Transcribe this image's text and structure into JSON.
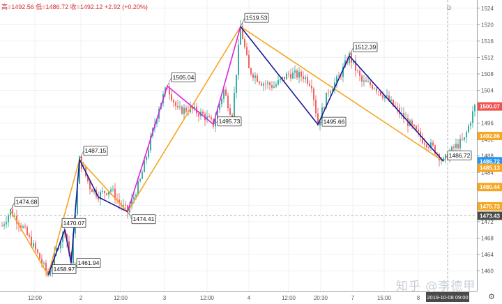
{
  "header": {
    "ohlc_text": "高=1492.56  低=1486.72  收=1492.12  +2.92 (+0.20%)",
    "toolbar_glyph": "⊙"
  },
  "watermark": "知乎 @李德甲",
  "settings_glyph": "⚙",
  "colors": {
    "background": "#ffffff",
    "up_candle": "#26a69a",
    "down_candle": "#ef5350",
    "zigzag_orange": "#f5a623",
    "zigzag_blue": "#1a1a9a",
    "zigzag_magenta": "#e020e0",
    "price_tag_orange": "#f5a623",
    "price_tag_blue": "#2196f3",
    "price_tag_red": "#ef5350",
    "price_tag_dark": "#4a4a4a"
  },
  "chart_data": {
    "type": "candlestick",
    "ylim": [
      1455,
      1526
    ],
    "x_ticks": [
      "12:00",
      "2",
      "12:00",
      "3",
      "12:00",
      "4",
      "12:00",
      "20:30",
      "7",
      "15:00",
      "8",
      "2019-10-08  09:00"
    ],
    "y_ticks": [
      1460,
      1464,
      1468,
      1472,
      1476,
      1480,
      1484,
      1488,
      1492,
      1496,
      1500,
      1504,
      1508,
      1512,
      1516,
      1520,
      1524
    ],
    "highlighted_x": "2019-10-08  09:00",
    "price_tags": [
      {
        "value": 1500.07,
        "color": "#ef5350"
      },
      {
        "value": 1492.86,
        "color": "#f5a623"
      },
      {
        "value": 1486.72,
        "color": "#2196f3"
      },
      {
        "value": 1485.13,
        "color": "#f5a623"
      },
      {
        "value": 1480.44,
        "color": "#f5a623"
      },
      {
        "value": 1475.73,
        "color": "#f5a623"
      },
      {
        "value": 1473.43,
        "color": "#4a4a4a"
      }
    ],
    "crosshair_price": 1473.43,
    "pivot_labels": [
      {
        "text": "1474.68",
        "x": 4,
        "y": 1474.68
      },
      {
        "text": "1470.07",
        "x": 30,
        "y": 1470.07
      },
      {
        "text": "1461.94",
        "x": 33,
        "y": 1461.94
      },
      {
        "text": "1458.97",
        "x": 22,
        "y": 1458.97
      },
      {
        "text": "1487.15",
        "x": 37,
        "y": 1487.15
      },
      {
        "text": "1474.41",
        "x": 60,
        "y": 1474.41
      },
      {
        "text": "1505.04",
        "x": 79,
        "y": 1505.04
      },
      {
        "text": "1495.73",
        "x": 101,
        "y": 1495.73
      },
      {
        "text": "1519.53",
        "x": 114,
        "y": 1519.53
      },
      {
        "text": "1495.66",
        "x": 151,
        "y": 1495.66
      },
      {
        "text": "1512.39",
        "x": 166,
        "y": 1512.39
      },
      {
        "text": "1486.72",
        "x": 211,
        "y": 1486.72
      }
    ],
    "zigzags": [
      {
        "name": "",
        "color": "#f5a623",
        "points": [
          [
            4,
            1474.68
          ],
          [
            22,
            1458.97
          ],
          [
            37,
            1487.15
          ],
          [
            60,
            1474.41
          ],
          [
            114,
            1519.53
          ],
          [
            211,
            1486.72
          ]
        ]
      },
      {
        "name": "",
        "color": "#1a1a9a",
        "points": [
          [
            22,
            1458.97
          ],
          [
            30,
            1470.07
          ],
          [
            33,
            1461.94
          ],
          [
            37,
            1487.15
          ],
          [
            46,
            1478.0
          ],
          [
            60,
            1474.41
          ]
        ]
      },
      {
        "name": "",
        "color": "#e020e0",
        "points": [
          [
            60,
            1474.41
          ],
          [
            79,
            1505.04
          ],
          [
            101,
            1495.73
          ],
          [
            114,
            1519.53
          ]
        ]
      },
      {
        "name": "",
        "color": "#1a1a9a",
        "points": [
          [
            114,
            1519.53
          ],
          [
            151,
            1495.66
          ],
          [
            166,
            1512.39
          ],
          [
            211,
            1486.72
          ]
        ]
      }
    ],
    "series": [
      {
        "name": "",
        "anchors": [
          [
            0,
            1471.0
          ],
          [
            4,
            1474.68
          ],
          [
            10,
            1470.5
          ],
          [
            16,
            1465.0
          ],
          [
            22,
            1458.97
          ],
          [
            27,
            1466.5
          ],
          [
            30,
            1470.07
          ],
          [
            33,
            1461.94
          ],
          [
            37,
            1487.15
          ],
          [
            42,
            1480.5
          ],
          [
            46,
            1478.5
          ],
          [
            52,
            1480.0
          ],
          [
            56,
            1476.5
          ],
          [
            60,
            1474.41
          ],
          [
            66,
            1482.0
          ],
          [
            71,
            1492.0
          ],
          [
            75,
            1500.0
          ],
          [
            79,
            1505.04
          ],
          [
            84,
            1499.0
          ],
          [
            90,
            1499.5
          ],
          [
            96,
            1498.0
          ],
          [
            101,
            1495.73
          ],
          [
            106,
            1504.0
          ],
          [
            110,
            1497.5
          ],
          [
            114,
            1519.53
          ],
          [
            118,
            1509.0
          ],
          [
            124,
            1506.0
          ],
          [
            130,
            1505.0
          ],
          [
            137,
            1508.0
          ],
          [
            144,
            1507.5
          ],
          [
            148,
            1505.5
          ],
          [
            151,
            1495.66
          ],
          [
            156,
            1504.0
          ],
          [
            161,
            1507.0
          ],
          [
            166,
            1512.39
          ],
          [
            172,
            1506.0
          ],
          [
            178,
            1505.0
          ],
          [
            184,
            1502.0
          ],
          [
            190,
            1498.5
          ],
          [
            196,
            1495.0
          ],
          [
            201,
            1492.0
          ],
          [
            206,
            1490.0
          ],
          [
            211,
            1486.72
          ],
          [
            216,
            1490.0
          ],
          [
            221,
            1492.0
          ],
          [
            226,
            1500.07
          ]
        ],
        "count": 227
      }
    ]
  }
}
